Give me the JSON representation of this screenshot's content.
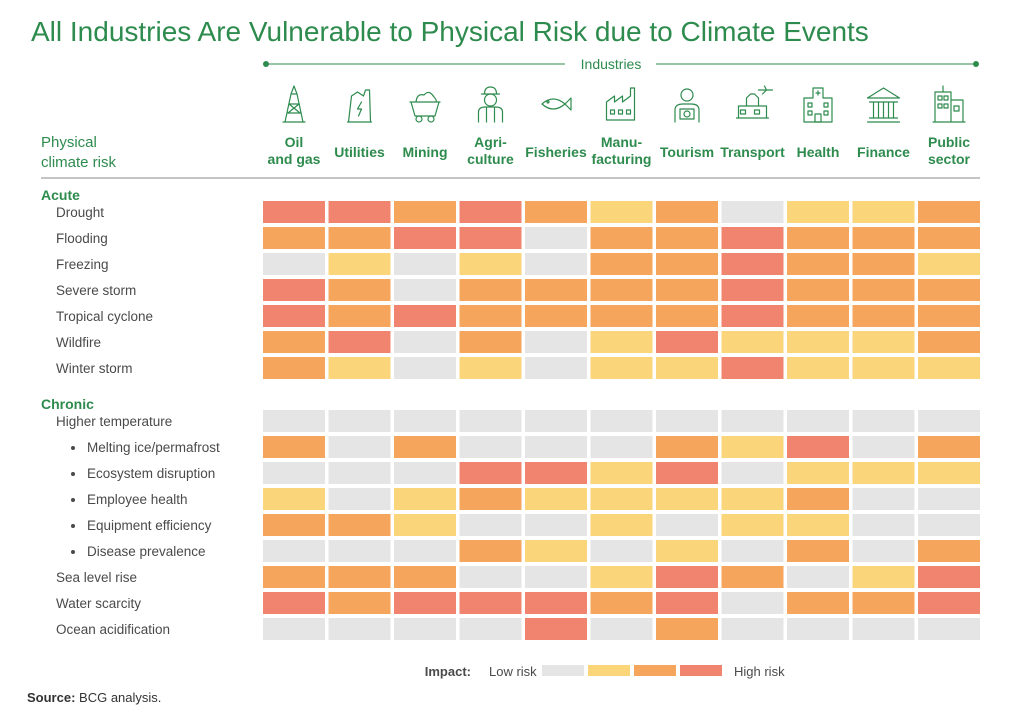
{
  "chart_data": {
    "type": "heatmap",
    "title": "All Industries Are Vulnerable to Physical Risk due to Climate Events",
    "column_group_label": "Industries",
    "row_header": [
      "Physical",
      "climate risk"
    ],
    "columns": [
      {
        "label": [
          "Oil",
          "and gas"
        ],
        "icon": "oil-rig-icon"
      },
      {
        "label": [
          "Utilities"
        ],
        "icon": "power-plant-icon"
      },
      {
        "label": [
          "Mining"
        ],
        "icon": "mine-cart-icon"
      },
      {
        "label": [
          "Agri-",
          "culture"
        ],
        "icon": "farmer-icon"
      },
      {
        "label": [
          "Fisheries"
        ],
        "icon": "fish-icon"
      },
      {
        "label": [
          "Manu-",
          "facturing"
        ],
        "icon": "factory-icon"
      },
      {
        "label": [
          "Tourism"
        ],
        "icon": "tourist-camera-icon"
      },
      {
        "label": [
          "Transport"
        ],
        "icon": "airport-plane-icon"
      },
      {
        "label": [
          "Health"
        ],
        "icon": "hospital-icon"
      },
      {
        "label": [
          "Finance"
        ],
        "icon": "bank-icon"
      },
      {
        "label": [
          "Public",
          "sector"
        ],
        "icon": "government-building-icon"
      }
    ],
    "groups": [
      {
        "name": "Acute",
        "rows": [
          {
            "label": "Drought",
            "indent": 1,
            "values": [
              3,
              3,
              2,
              3,
              2,
              1,
              2,
              0,
              1,
              1,
              2
            ]
          },
          {
            "label": "Flooding",
            "indent": 1,
            "values": [
              2,
              2,
              3,
              3,
              0,
              2,
              2,
              3,
              2,
              2,
              2
            ]
          },
          {
            "label": "Freezing",
            "indent": 1,
            "values": [
              0,
              1,
              0,
              1,
              0,
              2,
              2,
              3,
              2,
              2,
              1
            ]
          },
          {
            "label": "Severe storm",
            "indent": 1,
            "values": [
              3,
              2,
              0,
              2,
              2,
              2,
              2,
              3,
              2,
              2,
              2
            ]
          },
          {
            "label": "Tropical cyclone",
            "indent": 1,
            "values": [
              3,
              2,
              3,
              2,
              2,
              2,
              2,
              3,
              2,
              2,
              2
            ]
          },
          {
            "label": "Wildfire",
            "indent": 1,
            "values": [
              2,
              3,
              0,
              2,
              0,
              1,
              3,
              1,
              1,
              1,
              2
            ]
          },
          {
            "label": "Winter storm",
            "indent": 1,
            "values": [
              2,
              1,
              0,
              1,
              0,
              1,
              1,
              3,
              1,
              1,
              1
            ]
          }
        ]
      },
      {
        "name": "Chronic",
        "rows": [
          {
            "label": "Higher temperature",
            "indent": 1,
            "values": [
              0,
              0,
              0,
              0,
              0,
              0,
              0,
              0,
              0,
              0,
              0
            ]
          },
          {
            "label": "Melting ice/permafrost",
            "indent": 2,
            "values": [
              2,
              0,
              2,
              0,
              0,
              0,
              2,
              1,
              3,
              0,
              2
            ]
          },
          {
            "label": "Ecosystem disruption",
            "indent": 2,
            "values": [
              0,
              0,
              0,
              3,
              3,
              1,
              3,
              0,
              1,
              1,
              1
            ]
          },
          {
            "label": "Employee health",
            "indent": 2,
            "values": [
              1,
              0,
              1,
              2,
              1,
              1,
              1,
              1,
              2,
              0,
              0
            ]
          },
          {
            "label": "Equipment efficiency",
            "indent": 2,
            "values": [
              2,
              2,
              1,
              0,
              0,
              1,
              0,
              1,
              1,
              0,
              0
            ]
          },
          {
            "label": "Disease prevalence",
            "indent": 2,
            "values": [
              0,
              0,
              0,
              2,
              1,
              0,
              1,
              0,
              2,
              0,
              2
            ]
          },
          {
            "label": "Sea level rise",
            "indent": 1,
            "values": [
              2,
              2,
              2,
              0,
              0,
              1,
              3,
              2,
              0,
              1,
              3
            ]
          },
          {
            "label": "Water scarcity",
            "indent": 1,
            "values": [
              3,
              2,
              3,
              3,
              3,
              2,
              3,
              0,
              2,
              2,
              3
            ]
          },
          {
            "label": "Ocean acidification",
            "indent": 1,
            "values": [
              0,
              0,
              0,
              0,
              3,
              0,
              2,
              0,
              0,
              0,
              0
            ]
          }
        ]
      }
    ],
    "scale": {
      "label": "Impact:",
      "low_label": "Low risk",
      "high_label": "High risk",
      "colors": [
        "#e5e5e5",
        "#fad57a",
        "#f6a65c",
        "#f1846e"
      ]
    },
    "accent_color": "#2e8b4e"
  },
  "source": {
    "label": "Source:",
    "text": "BCG analysis."
  }
}
